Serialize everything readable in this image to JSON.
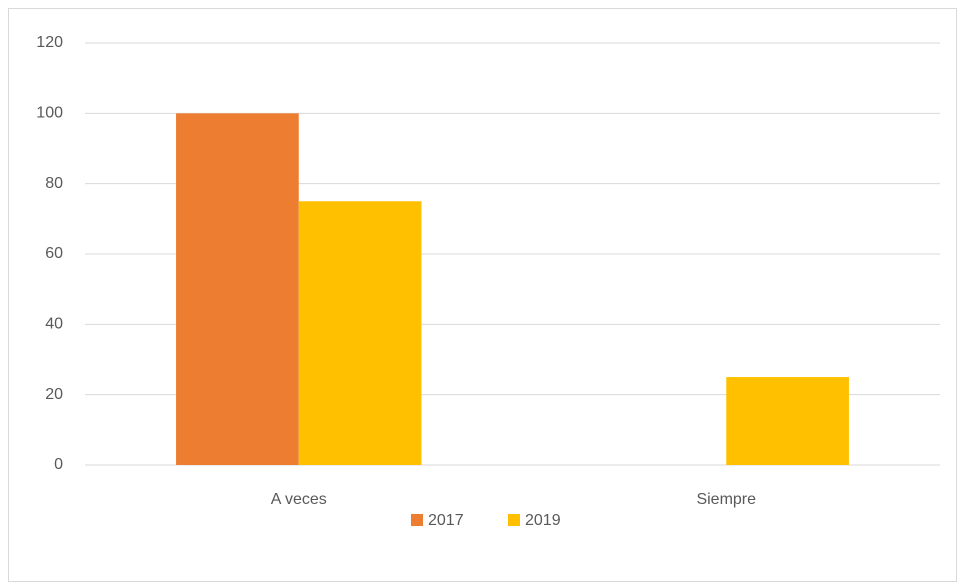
{
  "chart_data": {
    "type": "bar",
    "categories": [
      "A veces",
      "Siempre"
    ],
    "series": [
      {
        "name": "2017",
        "color": "#ED7D31",
        "values": [
          100,
          0
        ]
      },
      {
        "name": "2019",
        "color": "#FFC000",
        "values": [
          75,
          25
        ]
      }
    ],
    "ylim": [
      0,
      120
    ],
    "yticks": [
      0,
      20,
      40,
      60,
      80,
      100,
      120
    ],
    "grid": true,
    "legend": "bottom"
  }
}
